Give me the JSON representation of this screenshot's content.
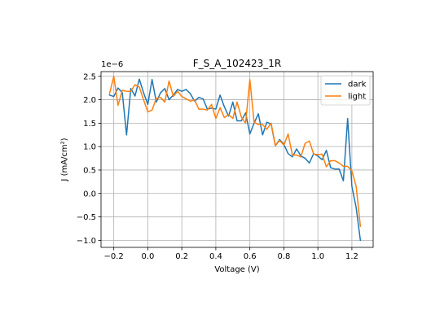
{
  "chart_data": {
    "type": "line",
    "title": "F_S_A_102423_1R",
    "xlabel": "Voltage (V)",
    "ylabel": "J (mA/cm²)",
    "y_offset_text": "1e−6",
    "xlim": [
      -0.275,
      1.325
    ],
    "ylim": [
      -1.15,
      2.6
    ],
    "xticks": [
      -0.2,
      0.0,
      0.2,
      0.4,
      0.6,
      0.8,
      1.0,
      1.2
    ],
    "xtick_labels": [
      "−0.2",
      "0.0",
      "0.2",
      "0.4",
      "0.6",
      "0.8",
      "1.0",
      "1.2"
    ],
    "yticks": [
      -1.0,
      -0.5,
      0.0,
      0.5,
      1.0,
      1.5,
      2.0,
      2.5
    ],
    "ytick_labels": [
      "−1.0",
      "−0.5",
      "0.0",
      "0.5",
      "1.0",
      "1.5",
      "2.0",
      "2.5"
    ],
    "grid": true,
    "legend_position": "upper right",
    "colors": {
      "dark": "#1f77b4",
      "light": "#ff7f0e"
    },
    "x": [
      -0.225,
      -0.2,
      -0.175,
      -0.15,
      -0.125,
      -0.1,
      -0.075,
      -0.05,
      -0.025,
      0.0,
      0.025,
      0.05,
      0.075,
      0.1,
      0.125,
      0.15,
      0.175,
      0.2,
      0.225,
      0.25,
      0.275,
      0.3,
      0.325,
      0.35,
      0.375,
      0.4,
      0.425,
      0.45,
      0.475,
      0.5,
      0.525,
      0.55,
      0.575,
      0.6,
      0.625,
      0.65,
      0.675,
      0.7,
      0.725,
      0.75,
      0.775,
      0.8,
      0.825,
      0.85,
      0.875,
      0.9,
      0.925,
      0.95,
      0.975,
      1.0,
      1.025,
      1.05,
      1.075,
      1.1,
      1.125,
      1.15,
      1.175,
      1.2,
      1.225,
      1.25
    ],
    "series": [
      {
        "name": "dark",
        "values": [
          2.1,
          2.07,
          2.25,
          2.15,
          1.25,
          2.24,
          2.08,
          2.44,
          2.15,
          1.9,
          2.43,
          1.95,
          2.15,
          2.24,
          2.0,
          2.1,
          2.22,
          2.18,
          2.22,
          2.13,
          1.97,
          2.05,
          2.02,
          1.8,
          1.82,
          1.8,
          2.1,
          1.85,
          1.65,
          1.95,
          1.55,
          1.55,
          1.72,
          1.27,
          1.5,
          1.7,
          1.25,
          1.52,
          1.48,
          1.02,
          1.15,
          1.05,
          0.85,
          0.78,
          0.95,
          0.8,
          0.75,
          0.65,
          0.85,
          0.8,
          0.72,
          0.92,
          0.55,
          0.52,
          0.52,
          0.27,
          1.6,
          0.15,
          -0.3,
          -1.0
        ]
      },
      {
        "name": "light",
        "values": [
          2.13,
          2.5,
          1.88,
          2.2,
          2.18,
          2.18,
          2.32,
          2.27,
          2.0,
          1.74,
          1.78,
          2.03,
          2.05,
          1.95,
          2.4,
          2.07,
          2.18,
          2.07,
          2.02,
          1.97,
          2.0,
          1.8,
          1.8,
          1.78,
          1.9,
          1.6,
          1.83,
          1.62,
          1.68,
          1.6,
          1.95,
          1.63,
          1.5,
          2.43,
          1.52,
          1.47,
          1.47,
          1.37,
          1.5,
          1.02,
          1.13,
          1.03,
          1.27,
          0.82,
          0.82,
          0.78,
          1.07,
          1.12,
          0.84,
          0.83,
          0.84,
          0.57,
          0.7,
          0.7,
          0.65,
          0.58,
          0.58,
          0.48,
          0.15,
          -0.7
        ]
      }
    ]
  }
}
